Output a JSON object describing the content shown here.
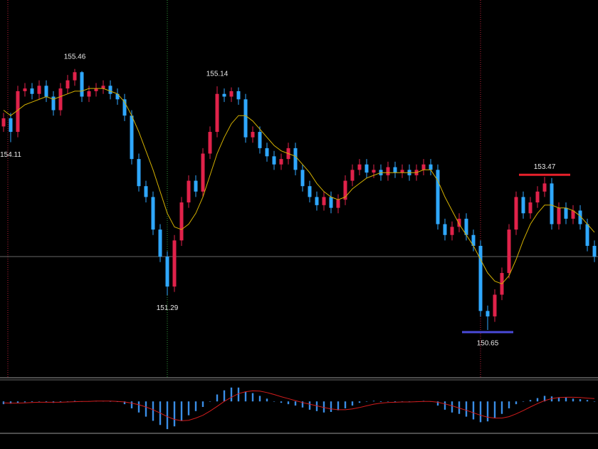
{
  "chart_data": [
    {
      "type": "candlestick",
      "ylim": [
        149.77,
        156.73
      ],
      "up_color": "#e0224a",
      "down_color": "#2fa8ff",
      "open": [
        154.4,
        154.55,
        154.3,
        155.05,
        155.1,
        155.0,
        155.15,
        154.95,
        154.7,
        155.1,
        155.25,
        155.4,
        154.95,
        155.05,
        155.1,
        155.15,
        155.0,
        154.9,
        154.6,
        153.8,
        153.3,
        153.1,
        152.5,
        152.0,
        151.45,
        152.3,
        153.0,
        153.4,
        153.2,
        153.9,
        154.3,
        155.0,
        154.95,
        155.05,
        154.9,
        154.2,
        154.3,
        154.0,
        153.85,
        153.7,
        153.8,
        154.0,
        153.6,
        153.3,
        153.1,
        152.95,
        153.1,
        152.9,
        153.05,
        153.4,
        153.6,
        153.7,
        153.55,
        153.6,
        153.5,
        153.65,
        153.55,
        153.6,
        153.5,
        153.6,
        153.7,
        153.6,
        152.6,
        152.4,
        152.55,
        152.7,
        152.4,
        152.2,
        151.0,
        150.9,
        151.3,
        151.7,
        152.5,
        153.1,
        152.8,
        153.0,
        153.2,
        153.35,
        152.6,
        152.9,
        152.7,
        152.85,
        152.6,
        152.2
      ],
      "high": [
        154.65,
        154.65,
        155.15,
        155.2,
        155.2,
        155.25,
        155.25,
        155.05,
        155.2,
        155.35,
        155.46,
        155.42,
        155.15,
        155.2,
        155.25,
        155.25,
        155.1,
        155.0,
        154.7,
        153.9,
        153.4,
        153.2,
        152.6,
        152.1,
        152.4,
        153.1,
        153.5,
        153.5,
        154.0,
        154.4,
        155.14,
        155.1,
        155.12,
        155.12,
        155.0,
        154.4,
        154.4,
        154.1,
        153.95,
        153.9,
        154.1,
        154.1,
        153.7,
        153.4,
        153.2,
        153.2,
        153.2,
        153.15,
        153.5,
        153.7,
        153.8,
        153.8,
        153.7,
        153.7,
        153.75,
        153.75,
        153.7,
        153.7,
        153.7,
        153.8,
        153.8,
        153.7,
        152.7,
        152.65,
        152.8,
        152.8,
        152.5,
        152.3,
        151.1,
        151.4,
        151.8,
        152.6,
        153.2,
        153.2,
        153.1,
        153.3,
        153.47,
        153.45,
        153.0,
        153.0,
        152.95,
        152.95,
        152.7,
        152.3
      ],
      "low": [
        154.3,
        154.11,
        154.2,
        154.95,
        154.9,
        154.9,
        154.85,
        154.6,
        154.6,
        155.0,
        155.15,
        154.85,
        154.85,
        154.95,
        155.0,
        154.9,
        154.8,
        154.5,
        153.7,
        153.2,
        153.0,
        152.4,
        151.9,
        151.29,
        151.35,
        152.2,
        152.9,
        153.1,
        153.1,
        153.8,
        154.2,
        154.85,
        154.85,
        154.8,
        154.1,
        154.1,
        153.9,
        153.75,
        153.6,
        153.6,
        153.7,
        153.5,
        153.2,
        153.0,
        152.85,
        152.85,
        152.8,
        152.8,
        152.95,
        153.3,
        153.5,
        153.45,
        153.45,
        153.4,
        153.4,
        153.45,
        153.45,
        153.4,
        153.4,
        153.5,
        153.5,
        152.5,
        152.3,
        152.3,
        152.45,
        152.3,
        152.1,
        150.9,
        150.65,
        150.8,
        151.2,
        151.6,
        152.4,
        152.7,
        152.7,
        152.9,
        153.1,
        152.5,
        152.5,
        152.6,
        152.6,
        152.5,
        152.1,
        151.9
      ],
      "close": [
        154.55,
        154.3,
        155.05,
        155.1,
        155.0,
        155.15,
        154.95,
        154.7,
        155.1,
        155.25,
        155.4,
        154.95,
        155.05,
        155.1,
        155.15,
        155.0,
        154.9,
        154.6,
        153.8,
        153.3,
        153.1,
        152.5,
        152.0,
        151.45,
        152.3,
        153.0,
        153.4,
        153.2,
        153.9,
        154.3,
        155.0,
        154.95,
        155.05,
        154.9,
        154.2,
        154.3,
        154.0,
        153.85,
        153.7,
        153.8,
        154.0,
        153.6,
        153.3,
        153.1,
        152.95,
        153.1,
        152.9,
        153.05,
        153.4,
        153.6,
        153.7,
        153.55,
        153.6,
        153.5,
        153.65,
        153.55,
        153.6,
        153.5,
        153.6,
        153.7,
        153.6,
        152.6,
        152.4,
        152.55,
        152.7,
        152.4,
        152.2,
        151.0,
        150.9,
        151.3,
        151.7,
        152.5,
        153.1,
        152.8,
        153.0,
        153.2,
        153.35,
        152.6,
        152.9,
        152.7,
        152.85,
        152.6,
        152.2,
        152.0
      ],
      "ma": {
        "color": "#d4b000",
        "values": [
          154.7,
          154.6,
          154.7,
          154.8,
          154.85,
          154.9,
          154.95,
          154.9,
          154.95,
          155.0,
          155.05,
          155.05,
          155.1,
          155.1,
          155.1,
          155.05,
          155.0,
          154.85,
          154.6,
          154.3,
          153.95,
          153.6,
          153.2,
          152.8,
          152.55,
          152.5,
          152.6,
          152.8,
          153.1,
          153.5,
          153.9,
          154.2,
          154.45,
          154.6,
          154.6,
          154.5,
          154.35,
          154.2,
          154.05,
          153.95,
          153.9,
          153.85,
          153.7,
          153.55,
          153.35,
          153.2,
          153.1,
          153.05,
          153.1,
          153.25,
          153.35,
          153.45,
          153.5,
          153.55,
          153.55,
          153.55,
          153.55,
          153.55,
          153.55,
          153.6,
          153.6,
          153.4,
          153.1,
          152.85,
          152.6,
          152.4,
          152.2,
          151.95,
          151.7,
          151.55,
          151.5,
          151.65,
          151.95,
          152.3,
          152.6,
          152.8,
          152.95,
          152.95,
          152.9,
          152.9,
          152.85,
          152.75,
          152.6,
          152.45
        ]
      },
      "annotations": [
        {
          "value": 154.11
        },
        {
          "value": 155.46
        },
        {
          "value": 151.29
        },
        {
          "value": 155.14
        },
        {
          "value": 150.65,
          "line_color": "#4a4ad8"
        },
        {
          "value": 153.47,
          "line_color": "#e8212b"
        }
      ]
    },
    {
      "type": "bar",
      "ylim": [
        -1.1,
        0.7
      ],
      "series": [
        {
          "type": "bar",
          "color": "#3a8ee6",
          "values": [
            -0.1,
            -0.08,
            -0.05,
            -0.03,
            -0.02,
            0,
            -0.02,
            -0.05,
            -0.03,
            0,
            0.02,
            0,
            0.01,
            0.02,
            0.02,
            0,
            -0.02,
            -0.1,
            -0.25,
            -0.4,
            -0.55,
            -0.7,
            -0.85,
            -1.0,
            -0.9,
            -0.7,
            -0.5,
            -0.35,
            -0.2,
            0,
            0.25,
            0.4,
            0.5,
            0.5,
            0.35,
            0.3,
            0.2,
            0.1,
            0,
            -0.05,
            -0.1,
            -0.15,
            -0.22,
            -0.3,
            -0.35,
            -0.4,
            -0.38,
            -0.32,
            -0.25,
            -0.15,
            -0.05,
            0,
            0.02,
            -0.02,
            0,
            -0.02,
            -0.01,
            -0.02,
            0,
            0.02,
            0,
            -0.15,
            -0.3,
            -0.4,
            -0.45,
            -0.55,
            -0.65,
            -0.75,
            -0.72,
            -0.6,
            -0.45,
            -0.25,
            -0.1,
            0,
            0.05,
            0.12,
            0.2,
            0.18,
            0.15,
            0.14,
            0.1,
            0.08,
            0.05,
            0.0
          ]
        },
        {
          "type": "line",
          "color": "#d01c1c",
          "values": [
            -0.05,
            -0.06,
            -0.06,
            -0.05,
            -0.04,
            -0.03,
            -0.03,
            -0.03,
            -0.03,
            -0.02,
            -0.01,
            0,
            0,
            0.01,
            0.01,
            0.01,
            0,
            -0.02,
            -0.06,
            -0.12,
            -0.2,
            -0.3,
            -0.42,
            -0.55,
            -0.65,
            -0.7,
            -0.68,
            -0.6,
            -0.5,
            -0.35,
            -0.18,
            0,
            0.15,
            0.28,
            0.35,
            0.38,
            0.37,
            0.32,
            0.25,
            0.17,
            0.1,
            0.03,
            -0.04,
            -0.1,
            -0.16,
            -0.22,
            -0.27,
            -0.3,
            -0.3,
            -0.27,
            -0.22,
            -0.16,
            -0.1,
            -0.06,
            -0.04,
            -0.03,
            -0.02,
            -0.02,
            -0.01,
            0,
            0,
            -0.03,
            -0.09,
            -0.16,
            -0.24,
            -0.32,
            -0.41,
            -0.5,
            -0.57,
            -0.6,
            -0.6,
            -0.55,
            -0.45,
            -0.33,
            -0.2,
            -0.08,
            0.03,
            0.1,
            0.14,
            0.15,
            0.15,
            0.14,
            0.12,
            0.1
          ]
        }
      ]
    }
  ]
}
